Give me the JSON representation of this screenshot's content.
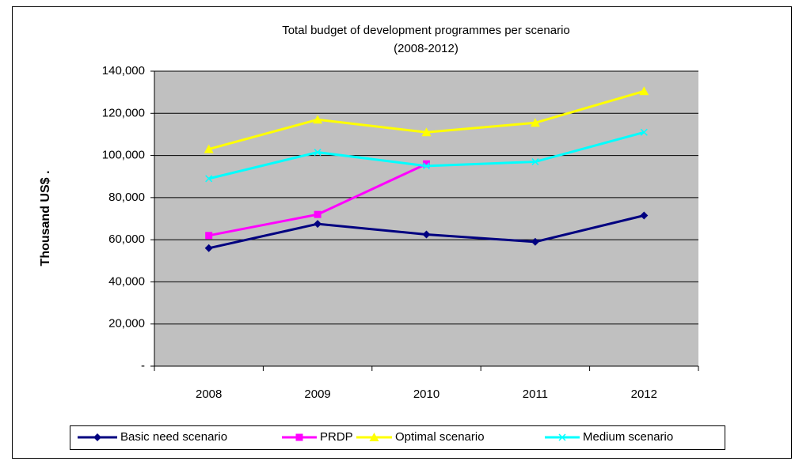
{
  "chart_data": {
    "type": "line",
    "title": "Total  budget of development programmes per scenario",
    "subtitle": "(2008-2012)",
    "y_label": "Thousand  US$   .",
    "categories": [
      "2008",
      "2009",
      "2010",
      "2011",
      "2012"
    ],
    "series": [
      {
        "name": "Basic need scenario",
        "color": "#000080",
        "marker": "diamond",
        "values": [
          56000,
          67500,
          62500,
          59000,
          71500
        ]
      },
      {
        "name": "PRDP",
        "color": "#ff00ff",
        "marker": "square",
        "values": [
          62000,
          72000,
          96000,
          null,
          null
        ]
      },
      {
        "name": "Optimal scenario",
        "color": "#ffff00",
        "marker": "triangle",
        "values": [
          103000,
          117000,
          111000,
          115500,
          130500
        ]
      },
      {
        "name": "Medium scenario",
        "color": "#00ffff",
        "marker": "x",
        "values": [
          89000,
          101500,
          95000,
          97000,
          111000
        ]
      }
    ],
    "ylim": [
      0,
      140000
    ],
    "yticks": [
      {
        "value": 0,
        "label": "-"
      },
      {
        "value": 20000,
        "label": "20,000"
      },
      {
        "value": 40000,
        "label": "40,000"
      },
      {
        "value": 60000,
        "label": "60,000"
      },
      {
        "value": 80000,
        "label": "80,000"
      },
      {
        "value": 100000,
        "label": "100,000"
      },
      {
        "value": 120000,
        "label": "120,000"
      },
      {
        "value": 140000,
        "label": "140,000"
      }
    ],
    "grid": true,
    "legend": "bottom"
  }
}
